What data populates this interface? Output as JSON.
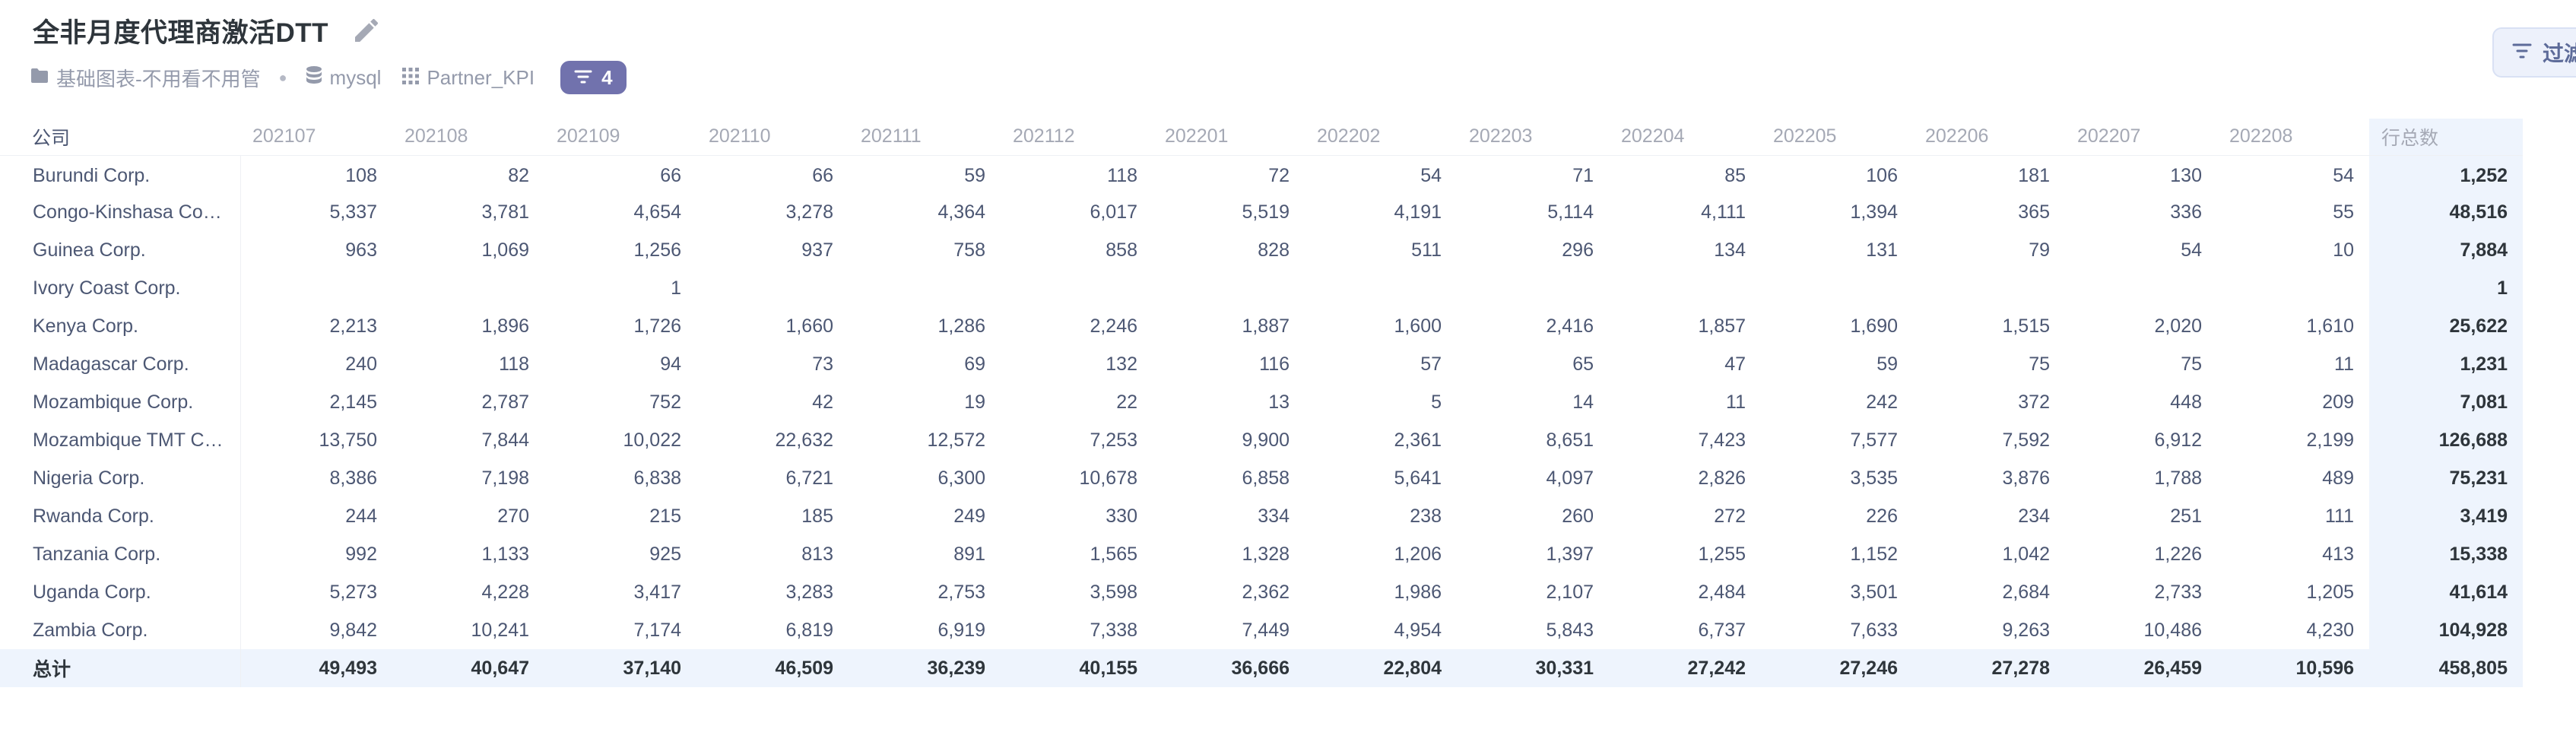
{
  "header": {
    "title": "全非月度代理商激活DTT",
    "collection": "基础图表-不用看不用管",
    "database": "mysql",
    "table_name": "Partner_KPI",
    "filter_count": "4",
    "filter_button_label": "过滤"
  },
  "table": {
    "row_header_label": "公司",
    "total_column_label": "行总数",
    "columns": [
      "202107",
      "202108",
      "202109",
      "202110",
      "202111",
      "202112",
      "202201",
      "202202",
      "202203",
      "202204",
      "202205",
      "202206",
      "202207",
      "202208"
    ],
    "rows": [
      {
        "name": "Burundi Corp.",
        "values": [
          "108",
          "82",
          "66",
          "66",
          "59",
          "118",
          "72",
          "54",
          "71",
          "85",
          "106",
          "181",
          "130",
          "54"
        ],
        "total": "1,252"
      },
      {
        "name": "Congo-Kinshasa Corp.",
        "values": [
          "5,337",
          "3,781",
          "4,654",
          "3,278",
          "4,364",
          "6,017",
          "5,519",
          "4,191",
          "5,114",
          "4,111",
          "1,394",
          "365",
          "336",
          "55"
        ],
        "total": "48,516"
      },
      {
        "name": "Guinea Corp.",
        "values": [
          "963",
          "1,069",
          "1,256",
          "937",
          "758",
          "858",
          "828",
          "511",
          "296",
          "134",
          "131",
          "79",
          "54",
          "10"
        ],
        "total": "7,884"
      },
      {
        "name": "Ivory Coast Corp.",
        "values": [
          "",
          "",
          "1",
          "",
          "",
          "",
          "",
          "",
          "",
          "",
          "",
          "",
          "",
          ""
        ],
        "total": "1"
      },
      {
        "name": "Kenya Corp.",
        "values": [
          "2,213",
          "1,896",
          "1,726",
          "1,660",
          "1,286",
          "2,246",
          "1,887",
          "1,600",
          "2,416",
          "1,857",
          "1,690",
          "1,515",
          "2,020",
          "1,610"
        ],
        "total": "25,622"
      },
      {
        "name": "Madagascar Corp.",
        "values": [
          "240",
          "118",
          "94",
          "73",
          "69",
          "132",
          "116",
          "57",
          "65",
          "47",
          "59",
          "75",
          "75",
          "11"
        ],
        "total": "1,231"
      },
      {
        "name": "Mozambique Corp.",
        "values": [
          "2,145",
          "2,787",
          "752",
          "42",
          "19",
          "22",
          "13",
          "5",
          "14",
          "11",
          "242",
          "372",
          "448",
          "209"
        ],
        "total": "7,081"
      },
      {
        "name": "Mozambique TMT Co...",
        "values": [
          "13,750",
          "7,844",
          "10,022",
          "22,632",
          "12,572",
          "7,253",
          "9,900",
          "2,361",
          "8,651",
          "7,423",
          "7,577",
          "7,592",
          "6,912",
          "2,199"
        ],
        "total": "126,688"
      },
      {
        "name": "Nigeria Corp.",
        "values": [
          "8,386",
          "7,198",
          "6,838",
          "6,721",
          "6,300",
          "10,678",
          "6,858",
          "5,641",
          "4,097",
          "2,826",
          "3,535",
          "3,876",
          "1,788",
          "489"
        ],
        "total": "75,231"
      },
      {
        "name": "Rwanda Corp.",
        "values": [
          "244",
          "270",
          "215",
          "185",
          "249",
          "330",
          "334",
          "238",
          "260",
          "272",
          "226",
          "234",
          "251",
          "111"
        ],
        "total": "3,419"
      },
      {
        "name": "Tanzania Corp.",
        "values": [
          "992",
          "1,133",
          "925",
          "813",
          "891",
          "1,565",
          "1,328",
          "1,206",
          "1,397",
          "1,255",
          "1,152",
          "1,042",
          "1,226",
          "413"
        ],
        "total": "15,338"
      },
      {
        "name": "Uganda Corp.",
        "values": [
          "5,273",
          "4,228",
          "3,417",
          "3,283",
          "2,753",
          "3,598",
          "2,362",
          "1,986",
          "2,107",
          "2,484",
          "3,501",
          "2,684",
          "2,733",
          "1,205"
        ],
        "total": "41,614"
      },
      {
        "name": "Zambia Corp.",
        "values": [
          "9,842",
          "10,241",
          "7,174",
          "6,819",
          "6,919",
          "7,338",
          "7,449",
          "4,954",
          "5,843",
          "6,737",
          "7,633",
          "9,263",
          "10,486",
          "4,230"
        ],
        "total": "104,928"
      }
    ],
    "grand_total": {
      "label": "总计",
      "values": [
        "49,493",
        "40,647",
        "37,140",
        "46,509",
        "36,239",
        "40,155",
        "36,666",
        "22,804",
        "30,331",
        "27,242",
        "27,246",
        "27,278",
        "26,459",
        "10,596"
      ],
      "total": "458,805"
    }
  }
}
